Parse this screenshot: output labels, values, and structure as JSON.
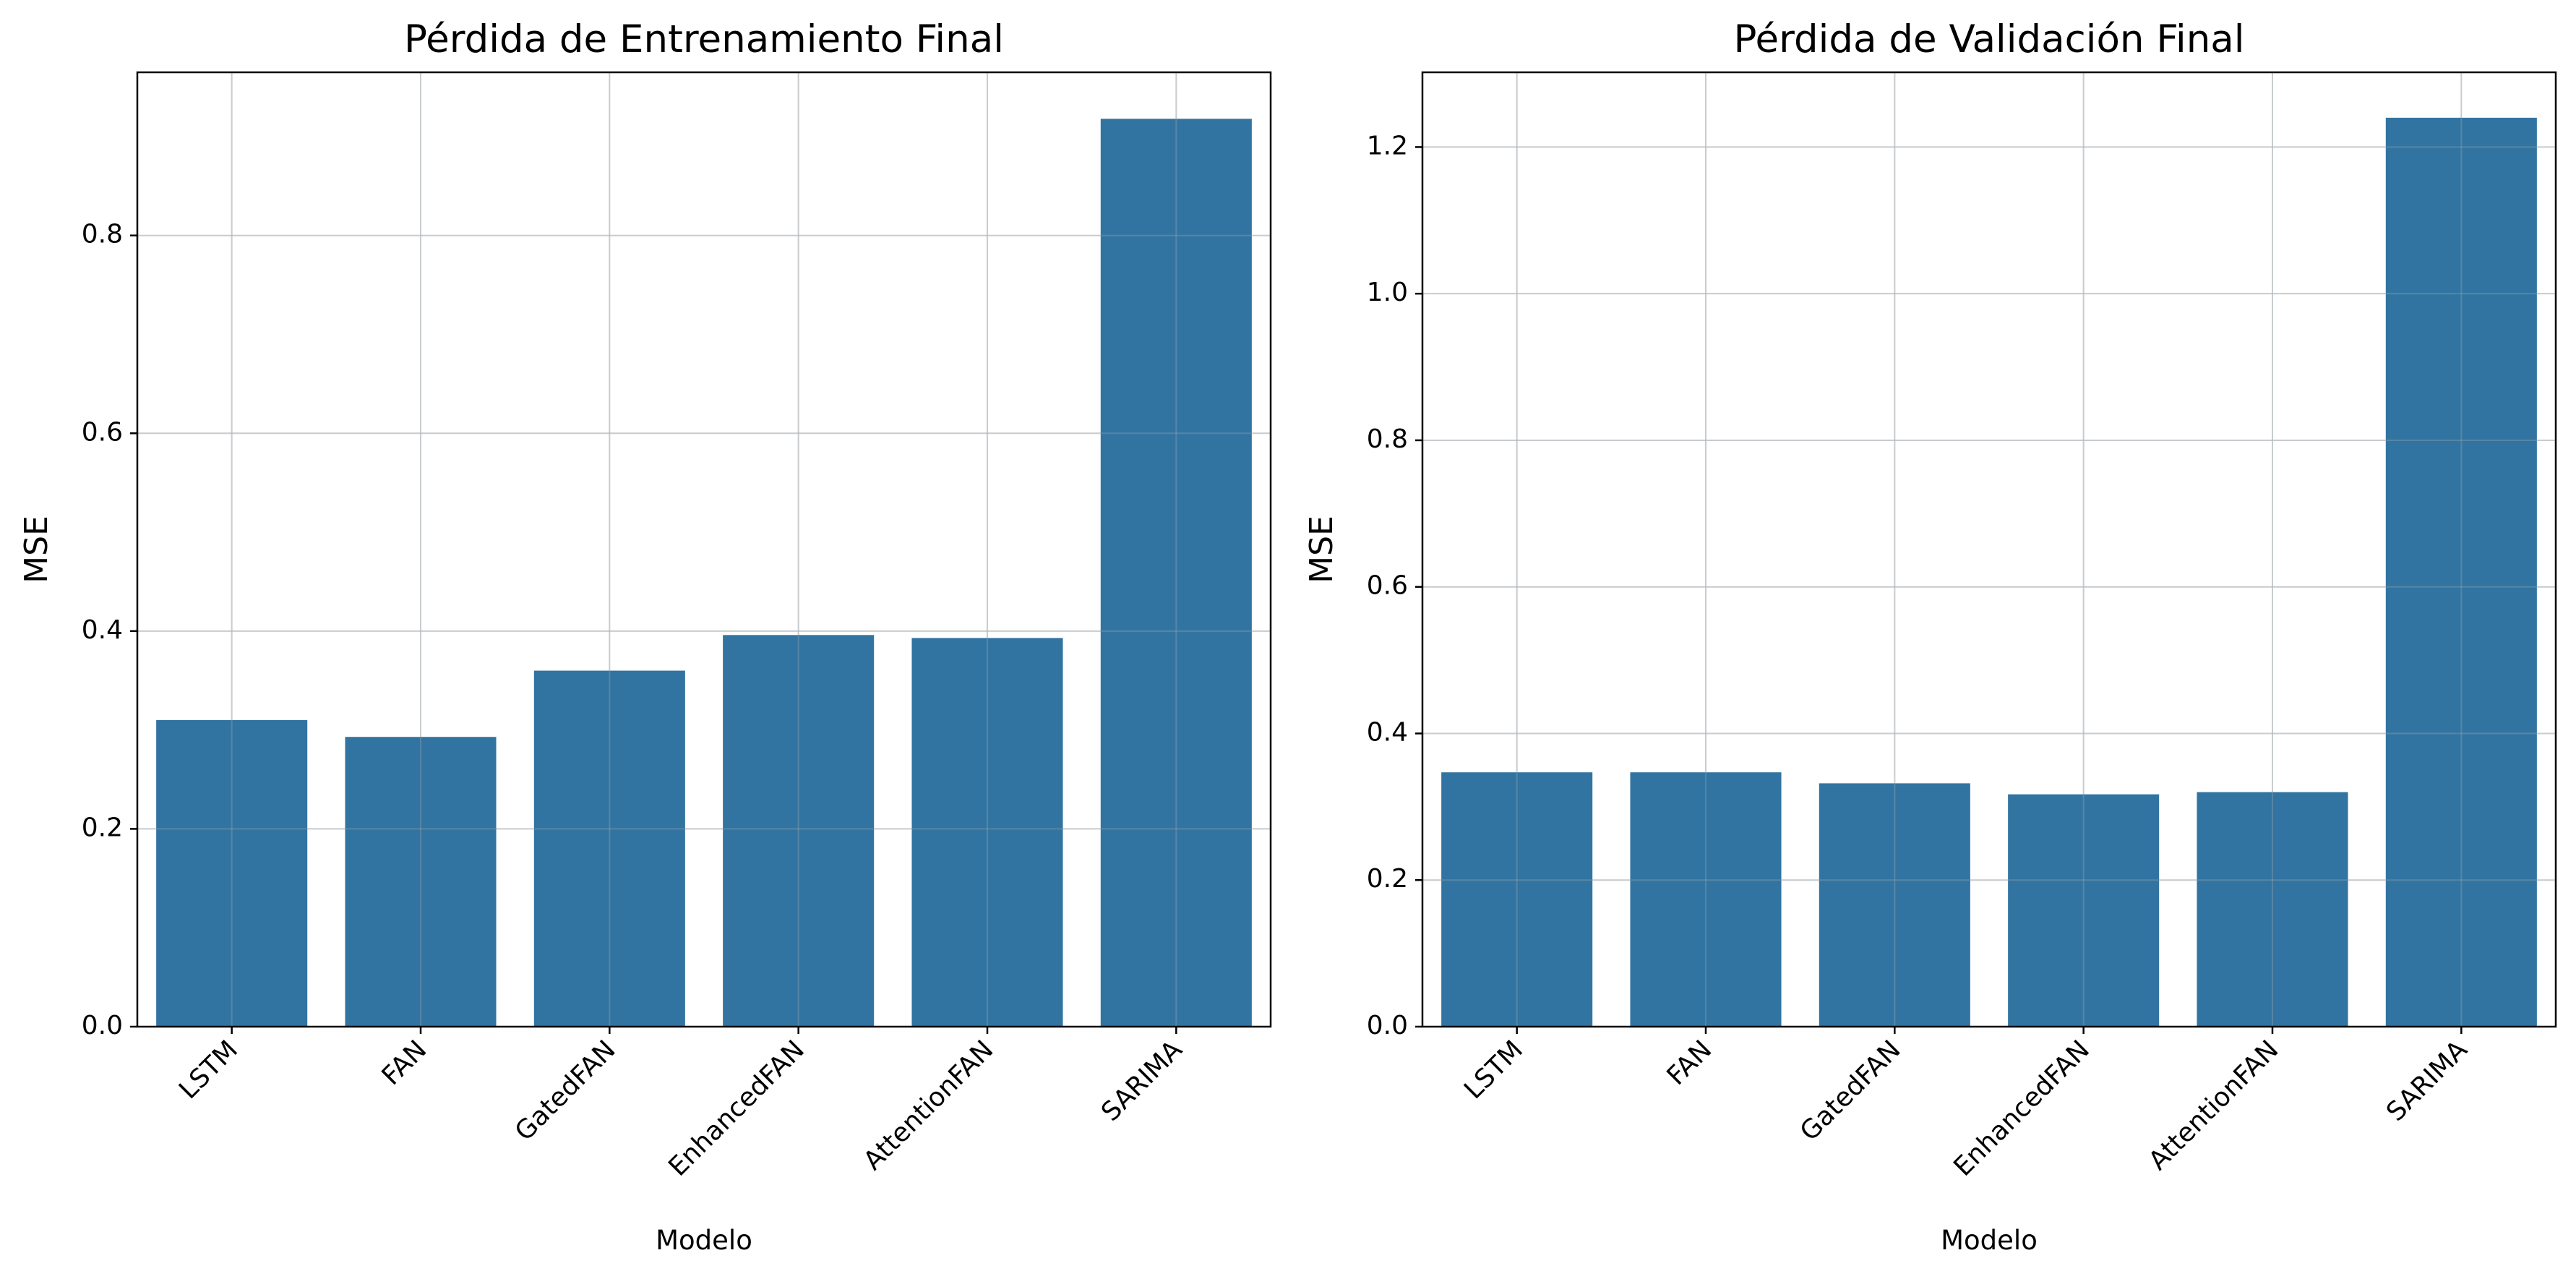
{
  "colors": {
    "bar": "#3274a1",
    "grid": "#e2e2e2",
    "axis": "#000000",
    "text": "#000000",
    "background": "#ffffff"
  },
  "chart_data": [
    {
      "type": "bar",
      "title": "Pérdida de Entrenamiento Final",
      "xlabel": "Modelo",
      "ylabel": "MSE",
      "categories": [
        "LSTM",
        "FAN",
        "GatedFAN",
        "EnhancedFAN",
        "AttentionFAN",
        "SARIMA"
      ],
      "values": [
        0.31,
        0.293,
        0.36,
        0.396,
        0.393,
        0.918
      ],
      "ylim": [
        0,
        0.965
      ],
      "yticks": [
        0.0,
        0.2,
        0.4,
        0.6,
        0.8
      ],
      "ytick_labels": [
        "0.0",
        "0.2",
        "0.4",
        "0.6",
        "0.8"
      ],
      "grid": true,
      "xtick_rotation": "45 degrees"
    },
    {
      "type": "bar",
      "title": "Pérdida de Validación Final",
      "xlabel": "Modelo",
      "ylabel": "MSE",
      "categories": [
        "LSTM",
        "FAN",
        "GatedFAN",
        "EnhancedFAN",
        "AttentionFAN",
        "SARIMA"
      ],
      "values": [
        0.347,
        0.347,
        0.332,
        0.317,
        0.32,
        1.24
      ],
      "ylim": [
        0,
        1.302
      ],
      "yticks": [
        0.0,
        0.2,
        0.4,
        0.6,
        0.8,
        1.0,
        1.2
      ],
      "ytick_labels": [
        "0.0",
        "0.2",
        "0.4",
        "0.6",
        "0.8",
        "1.0",
        "1.2"
      ],
      "grid": true,
      "xtick_rotation": "45 degrees"
    }
  ]
}
